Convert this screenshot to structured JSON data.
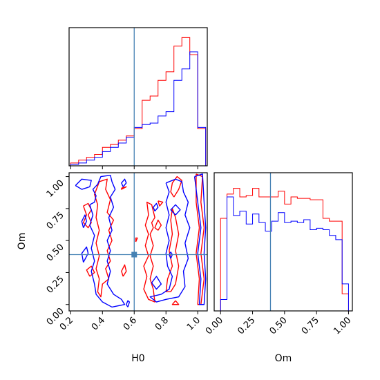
{
  "chart_data": {
    "type": "corner",
    "parameters": [
      "H0",
      "Om"
    ],
    "truths": {
      "H0": 0.6,
      "Om": 0.39
    },
    "truth_color": "#4682b4",
    "colors": {
      "red": "#ff0000",
      "blue": "#0000ff"
    },
    "axes": {
      "H0": {
        "label": "H0",
        "range": [
          0.19,
          1.06
        ],
        "ticks": [
          0.2,
          0.4,
          0.6,
          0.8,
          1.0
        ],
        "tick_labels": [
          "0.2",
          "0.4",
          "0.6",
          "0.8",
          "1.0"
        ]
      },
      "Om": {
        "label": "Om",
        "range": [
          -0.05,
          1.03
        ],
        "ticks": [
          0.0,
          0.25,
          0.5,
          0.75,
          1.0
        ],
        "tick_labels": [
          "0.00",
          "0.25",
          "0.50",
          "0.75",
          "1.00"
        ]
      }
    },
    "hist_H0": {
      "edges": [
        0.2,
        0.25,
        0.3,
        0.35,
        0.4,
        0.45,
        0.5,
        0.55,
        0.6,
        0.65,
        0.7,
        0.75,
        0.8,
        0.85,
        0.9,
        0.95,
        1.0,
        1.05
      ],
      "series": [
        {
          "color": "red",
          "values": [
            0.02,
            0.04,
            0.06,
            0.08,
            0.13,
            0.15,
            0.18,
            0.21,
            0.26,
            0.46,
            0.49,
            0.6,
            0.66,
            0.84,
            0.9,
            0.78,
            0.26
          ]
        },
        {
          "color": "blue",
          "values": [
            0.01,
            0.02,
            0.04,
            0.06,
            0.1,
            0.13,
            0.16,
            0.2,
            0.27,
            0.29,
            0.3,
            0.35,
            0.38,
            0.6,
            0.68,
            0.8,
            0.27
          ]
        }
      ]
    },
    "hist_Om": {
      "edges": [
        0.0,
        0.05,
        0.1,
        0.15,
        0.2,
        0.25,
        0.3,
        0.35,
        0.4,
        0.45,
        0.5,
        0.55,
        0.6,
        0.65,
        0.7,
        0.75,
        0.8,
        0.85,
        0.9,
        0.95,
        1.0
      ],
      "series": [
        {
          "color": "red",
          "values": [
            0.65,
            0.82,
            0.86,
            0.8,
            0.81,
            0.86,
            0.8,
            0.8,
            0.8,
            0.84,
            0.75,
            0.8,
            0.79,
            0.79,
            0.78,
            0.78,
            0.65,
            0.63,
            0.63,
            0.12
          ]
        },
        {
          "color": "blue",
          "values": [
            0.08,
            0.8,
            0.67,
            0.7,
            0.61,
            0.68,
            0.62,
            0.56,
            0.63,
            0.69,
            0.62,
            0.63,
            0.62,
            0.64,
            0.57,
            0.58,
            0.57,
            0.53,
            0.5,
            0.19
          ]
        }
      ]
    },
    "contours": [
      {
        "color": "red",
        "points": [
          [
            0.28,
            0.77
          ],
          [
            0.31,
            0.79
          ],
          [
            0.33,
            0.74
          ],
          [
            0.31,
            0.7
          ],
          [
            0.33,
            0.64
          ],
          [
            0.31,
            0.6
          ],
          [
            0.28,
            0.64
          ],
          [
            0.3,
            0.7
          ],
          [
            0.28,
            0.77
          ]
        ]
      },
      {
        "color": "red",
        "points": [
          [
            0.38,
            0.96
          ],
          [
            0.43,
            0.98
          ],
          [
            0.42,
            0.9
          ],
          [
            0.45,
            0.82
          ],
          [
            0.43,
            0.72
          ],
          [
            0.47,
            0.66
          ],
          [
            0.44,
            0.58
          ],
          [
            0.46,
            0.5
          ],
          [
            0.43,
            0.42
          ],
          [
            0.45,
            0.34
          ],
          [
            0.42,
            0.28
          ],
          [
            0.44,
            0.2
          ],
          [
            0.4,
            0.16
          ],
          [
            0.39,
            0.06
          ],
          [
            0.37,
            0.1
          ],
          [
            0.38,
            0.2
          ],
          [
            0.36,
            0.28
          ],
          [
            0.38,
            0.38
          ],
          [
            0.36,
            0.48
          ],
          [
            0.38,
            0.58
          ],
          [
            0.36,
            0.68
          ],
          [
            0.37,
            0.78
          ],
          [
            0.35,
            0.86
          ],
          [
            0.38,
            0.96
          ]
        ]
      },
      {
        "color": "red",
        "points": [
          [
            0.32,
            0.22
          ],
          [
            0.35,
            0.25
          ],
          [
            0.33,
            0.3
          ],
          [
            0.3,
            0.27
          ],
          [
            0.32,
            0.22
          ]
        ]
      },
      {
        "color": "red",
        "points": [
          [
            0.53,
            0.22
          ],
          [
            0.55,
            0.26
          ],
          [
            0.54,
            0.31
          ],
          [
            0.52,
            0.26
          ],
          [
            0.53,
            0.22
          ]
        ]
      },
      {
        "color": "red",
        "points": [
          [
            0.52,
            0.91
          ],
          [
            0.55,
            0.92
          ],
          [
            0.52,
            0.9
          ],
          [
            0.52,
            0.91
          ]
        ]
      },
      {
        "color": "red",
        "points": [
          [
            0.61,
            0.49
          ],
          [
            0.62,
            0.52
          ],
          [
            0.61,
            0.52
          ],
          [
            0.61,
            0.49
          ]
        ]
      },
      {
        "color": "red",
        "points": [
          [
            0.7,
            0.55
          ],
          [
            0.72,
            0.6
          ],
          [
            0.71,
            0.64
          ],
          [
            0.73,
            0.68
          ],
          [
            0.71,
            0.78
          ],
          [
            0.68,
            0.8
          ],
          [
            0.69,
            0.7
          ],
          [
            0.67,
            0.62
          ],
          [
            0.69,
            0.55
          ],
          [
            0.67,
            0.46
          ],
          [
            0.69,
            0.38
          ],
          [
            0.66,
            0.3
          ],
          [
            0.68,
            0.22
          ],
          [
            0.66,
            0.12
          ],
          [
            0.69,
            0.04
          ],
          [
            0.73,
            0.02
          ],
          [
            0.72,
            0.12
          ],
          [
            0.7,
            0.2
          ],
          [
            0.72,
            0.3
          ],
          [
            0.7,
            0.38
          ],
          [
            0.72,
            0.46
          ],
          [
            0.7,
            0.55
          ]
        ]
      },
      {
        "color": "red",
        "points": [
          [
            0.75,
            0.58
          ],
          [
            0.77,
            0.62
          ],
          [
            0.75,
            0.66
          ],
          [
            0.73,
            0.6
          ],
          [
            0.75,
            0.58
          ]
        ]
      },
      {
        "color": "red",
        "points": [
          [
            0.75,
            0.81
          ],
          [
            0.78,
            0.8
          ],
          [
            0.76,
            0.77
          ],
          [
            0.75,
            0.81
          ]
        ]
      },
      {
        "color": "red",
        "points": [
          [
            0.85,
            0.84
          ],
          [
            0.88,
            0.9
          ],
          [
            0.9,
            0.97
          ],
          [
            0.87,
            1.0
          ],
          [
            0.84,
            0.95
          ],
          [
            0.83,
            0.88
          ],
          [
            0.85,
            0.84
          ]
        ]
      },
      {
        "color": "red",
        "points": [
          [
            0.83,
            0.1
          ],
          [
            0.86,
            0.16
          ],
          [
            0.88,
            0.3
          ],
          [
            0.86,
            0.42
          ],
          [
            0.88,
            0.55
          ],
          [
            0.86,
            0.68
          ],
          [
            0.84,
            0.75
          ],
          [
            0.83,
            0.66
          ],
          [
            0.84,
            0.55
          ],
          [
            0.82,
            0.42
          ],
          [
            0.84,
            0.3
          ],
          [
            0.81,
            0.2
          ],
          [
            0.8,
            0.1
          ],
          [
            0.83,
            0.1
          ]
        ]
      },
      {
        "color": "red",
        "points": [
          [
            0.99,
            1.02
          ],
          [
            1.03,
            1.0
          ],
          [
            1.02,
            0.8
          ],
          [
            1.04,
            0.6
          ],
          [
            1.02,
            0.4
          ],
          [
            1.04,
            0.2
          ],
          [
            1.02,
            0.0
          ],
          [
            1.0,
            0.0
          ],
          [
            1.01,
            0.2
          ],
          [
            0.99,
            0.4
          ],
          [
            1.01,
            0.6
          ],
          [
            0.99,
            0.8
          ],
          [
            0.99,
            1.02
          ]
        ]
      },
      {
        "color": "red",
        "points": [
          [
            0.86,
            0.03
          ],
          [
            0.88,
            0.0
          ],
          [
            0.84,
            0.0
          ],
          [
            0.86,
            0.03
          ]
        ]
      },
      {
        "color": "blue",
        "points": [
          [
            0.23,
            0.93
          ],
          [
            0.27,
            0.98
          ],
          [
            0.33,
            0.97
          ],
          [
            0.32,
            0.92
          ],
          [
            0.27,
            0.9
          ],
          [
            0.23,
            0.93
          ]
        ]
      },
      {
        "color": "blue",
        "points": [
          [
            0.32,
            0.78
          ],
          [
            0.35,
            0.8
          ],
          [
            0.36,
            0.85
          ],
          [
            0.34,
            0.9
          ],
          [
            0.37,
            0.94
          ],
          [
            0.39,
            1.0
          ],
          [
            0.45,
            1.01
          ],
          [
            0.46,
            0.96
          ],
          [
            0.48,
            0.9
          ],
          [
            0.45,
            0.84
          ],
          [
            0.47,
            0.76
          ],
          [
            0.44,
            0.68
          ],
          [
            0.46,
            0.58
          ],
          [
            0.43,
            0.5
          ],
          [
            0.45,
            0.42
          ],
          [
            0.43,
            0.34
          ],
          [
            0.45,
            0.26
          ],
          [
            0.43,
            0.16
          ],
          [
            0.47,
            0.08
          ],
          [
            0.52,
            0.04
          ],
          [
            0.54,
            0.0
          ],
          [
            0.46,
            -0.02
          ],
          [
            0.4,
            0.02
          ],
          [
            0.36,
            0.08
          ],
          [
            0.35,
            0.16
          ],
          [
            0.33,
            0.26
          ],
          [
            0.35,
            0.34
          ],
          [
            0.33,
            0.44
          ],
          [
            0.35,
            0.54
          ],
          [
            0.32,
            0.62
          ],
          [
            0.34,
            0.7
          ],
          [
            0.32,
            0.78
          ]
        ]
      },
      {
        "color": "blue",
        "points": [
          [
            0.28,
            0.6
          ],
          [
            0.3,
            0.65
          ],
          [
            0.29,
            0.7
          ],
          [
            0.27,
            0.65
          ],
          [
            0.28,
            0.6
          ]
        ]
      },
      {
        "color": "blue",
        "points": [
          [
            0.28,
            0.33
          ],
          [
            0.31,
            0.4
          ],
          [
            0.3,
            0.45
          ],
          [
            0.27,
            0.4
          ],
          [
            0.28,
            0.33
          ]
        ]
      },
      {
        "color": "blue",
        "points": [
          [
            0.53,
            0.92
          ],
          [
            0.55,
            0.95
          ],
          [
            0.54,
            0.98
          ],
          [
            0.52,
            0.95
          ],
          [
            0.53,
            0.92
          ]
        ]
      },
      {
        "color": "blue",
        "points": [
          [
            0.73,
            0.73
          ],
          [
            0.75,
            0.76
          ],
          [
            0.74,
            0.79
          ],
          [
            0.72,
            0.76
          ],
          [
            0.73,
            0.73
          ]
        ]
      },
      {
        "color": "blue",
        "points": [
          [
            0.71,
            0.17
          ],
          [
            0.74,
            0.22
          ],
          [
            0.77,
            0.16
          ],
          [
            0.74,
            0.12
          ],
          [
            0.71,
            0.17
          ]
        ]
      },
      {
        "color": "blue",
        "points": [
          [
            0.83,
            0.36
          ],
          [
            0.84,
            0.39
          ],
          [
            0.83,
            0.41
          ],
          [
            0.82,
            0.39
          ],
          [
            0.83,
            0.36
          ]
        ]
      },
      {
        "color": "blue",
        "points": [
          [
            0.86,
            0.7
          ],
          [
            0.89,
            0.74
          ],
          [
            0.86,
            0.78
          ],
          [
            0.83,
            0.74
          ],
          [
            0.86,
            0.7
          ]
        ]
      },
      {
        "color": "blue",
        "points": [
          [
            0.8,
            0.95
          ],
          [
            0.86,
            0.98
          ],
          [
            0.9,
            0.96
          ],
          [
            0.91,
            0.88
          ],
          [
            0.94,
            0.8
          ],
          [
            0.92,
            0.7
          ],
          [
            0.95,
            0.6
          ],
          [
            0.92,
            0.48
          ],
          [
            0.94,
            0.36
          ],
          [
            0.91,
            0.26
          ],
          [
            0.92,
            0.14
          ],
          [
            0.88,
            0.06
          ],
          [
            0.8,
            0.04
          ],
          [
            0.74,
            0.02
          ],
          [
            0.7,
            0.06
          ],
          [
            0.77,
            0.08
          ],
          [
            0.82,
            0.12
          ],
          [
            0.84,
            0.22
          ],
          [
            0.81,
            0.3
          ],
          [
            0.8,
            0.4
          ],
          [
            0.82,
            0.5
          ],
          [
            0.8,
            0.6
          ],
          [
            0.82,
            0.7
          ],
          [
            0.8,
            0.8
          ],
          [
            0.82,
            0.88
          ],
          [
            0.8,
            0.95
          ]
        ]
      },
      {
        "color": "blue",
        "points": [
          [
            0.98,
            1.0
          ],
          [
            1.03,
            1.02
          ],
          [
            1.04,
            0.8
          ],
          [
            1.05,
            0.6
          ],
          [
            1.04,
            0.4
          ],
          [
            1.05,
            0.2
          ],
          [
            1.04,
            0.0
          ],
          [
            1.01,
            0.0
          ],
          [
            1.02,
            0.2
          ],
          [
            1.0,
            0.4
          ],
          [
            1.02,
            0.6
          ],
          [
            1.0,
            0.8
          ],
          [
            0.98,
            1.0
          ]
        ]
      },
      {
        "color": "blue",
        "points": [
          [
            0.56,
            -0.02
          ],
          [
            0.57,
            0.02
          ],
          [
            0.56,
            0.03
          ],
          [
            0.55,
            0.0
          ],
          [
            0.56,
            -0.02
          ]
        ]
      }
    ]
  }
}
